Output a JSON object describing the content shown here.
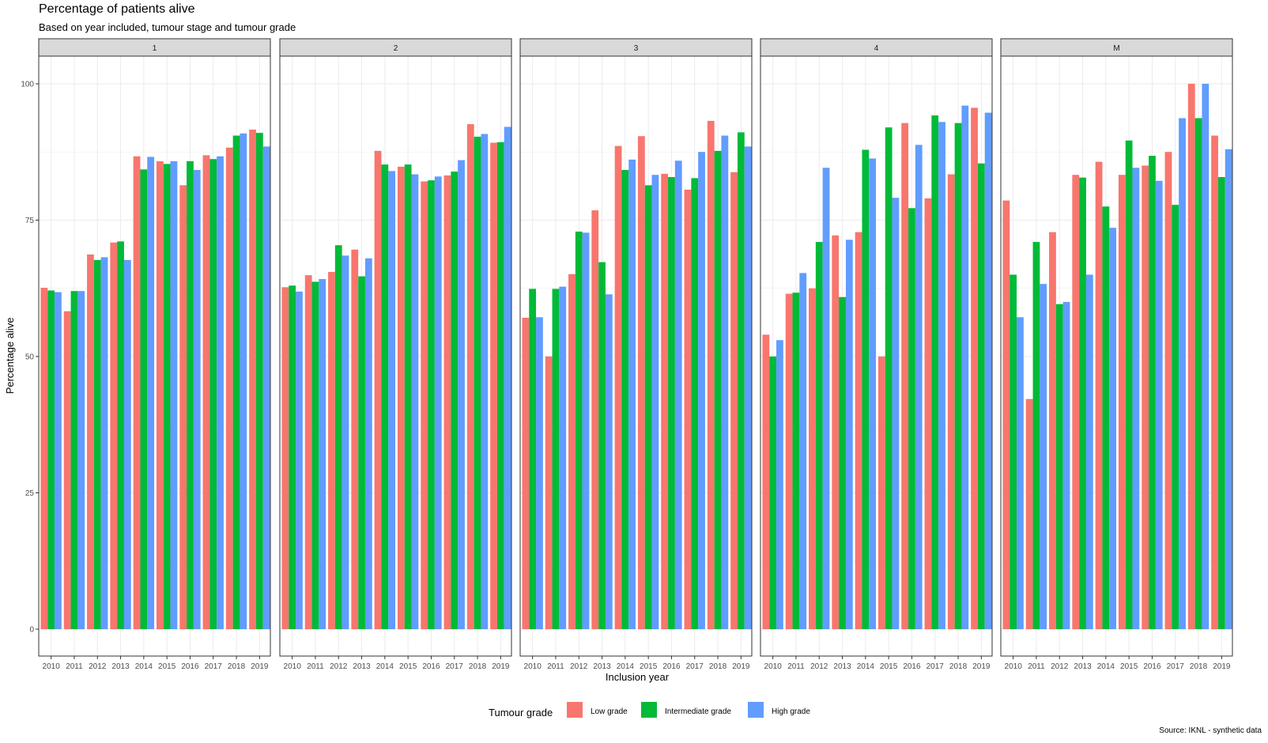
{
  "chart_data": {
    "type": "bar",
    "title": "Percentage of patients alive",
    "subtitle": "Based on year included, tumour stage and tumour grade",
    "xlabel": "Inclusion year",
    "ylabel": "Percentage alive",
    "caption": "Source: IKNL - synthetic data",
    "ylim": [
      0,
      105
    ],
    "yticks": [
      0,
      25,
      50,
      75,
      100
    ],
    "grid": true,
    "legend_position": "bottom",
    "legend_title": "Tumour grade",
    "categories": [
      "2010",
      "2011",
      "2012",
      "2013",
      "2014",
      "2015",
      "2016",
      "2017",
      "2018",
      "2019"
    ],
    "series_meta": [
      {
        "name": "Low grade",
        "color": "#F8766D"
      },
      {
        "name": "Intermediate grade",
        "color": "#00BA38"
      },
      {
        "name": "High grade",
        "color": "#619CFF"
      }
    ],
    "panels": [
      {
        "label": "1",
        "series": [
          {
            "name": "Low grade",
            "values": [
              62.6,
              58.3,
              68.7,
              70.9,
              86.7,
              85.8,
              81.4,
              86.9,
              88.3,
              91.6
            ]
          },
          {
            "name": "Intermediate grade",
            "values": [
              62.1,
              62.0,
              67.7,
              71.1,
              84.3,
              85.3,
              85.8,
              86.2,
              90.5,
              91.0
            ]
          },
          {
            "name": "High grade",
            "values": [
              61.8,
              62.0,
              68.2,
              67.7,
              86.6,
              85.8,
              84.2,
              86.7,
              90.9,
              88.5
            ]
          }
        ]
      },
      {
        "label": "2",
        "series": [
          {
            "name": "Low grade",
            "values": [
              62.7,
              64.9,
              65.5,
              69.6,
              87.7,
              84.8,
              82.1,
              83.2,
              92.6,
              89.2
            ]
          },
          {
            "name": "Intermediate grade",
            "values": [
              63.0,
              63.7,
              70.4,
              64.7,
              85.2,
              85.2,
              82.3,
              83.9,
              90.3,
              89.3
            ]
          },
          {
            "name": "High grade",
            "values": [
              61.9,
              64.2,
              68.5,
              68.0,
              84.0,
              83.4,
              83.0,
              86.0,
              90.8,
              92.1
            ]
          }
        ]
      },
      {
        "label": "3",
        "series": [
          {
            "name": "Low grade",
            "values": [
              57.1,
              50.0,
              65.1,
              76.8,
              88.6,
              90.4,
              83.5,
              80.6,
              93.2,
              83.8
            ]
          },
          {
            "name": "Intermediate grade",
            "values": [
              62.4,
              62.4,
              72.9,
              67.3,
              84.2,
              81.4,
              82.9,
              82.7,
              87.7,
              91.1
            ]
          },
          {
            "name": "High grade",
            "values": [
              57.2,
              62.8,
              72.7,
              61.4,
              86.1,
              83.3,
              85.9,
              87.5,
              90.5,
              88.5
            ]
          }
        ]
      },
      {
        "label": "4",
        "series": [
          {
            "name": "Low grade",
            "values": [
              54.0,
              61.5,
              62.5,
              72.2,
              72.8,
              50.0,
              92.8,
              79.0,
              83.4,
              95.6
            ]
          },
          {
            "name": "Intermediate grade",
            "values": [
              50.0,
              61.7,
              71.0,
              60.9,
              87.9,
              92.0,
              77.2,
              94.2,
              92.8,
              85.4
            ]
          },
          {
            "name": "High grade",
            "values": [
              53.0,
              65.3,
              84.6,
              71.4,
              86.3,
              79.1,
              88.8,
              93.0,
              96.0,
              94.7
            ]
          }
        ]
      },
      {
        "label": "M",
        "series": [
          {
            "name": "Low grade",
            "values": [
              78.6,
              42.2,
              72.8,
              83.3,
              85.7,
              83.3,
              85.0,
              87.5,
              100.0,
              90.5
            ]
          },
          {
            "name": "Intermediate grade",
            "values": [
              65.0,
              71.0,
              59.6,
              82.8,
              77.5,
              89.6,
              86.8,
              77.8,
              93.7,
              82.9
            ]
          },
          {
            "name": "High grade",
            "values": [
              57.2,
              63.3,
              60.0,
              65.0,
              73.6,
              84.6,
              82.2,
              93.7,
              100.0,
              88.0
            ]
          }
        ]
      }
    ]
  }
}
